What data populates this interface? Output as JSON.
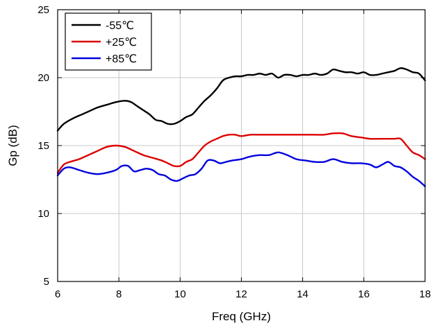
{
  "chart_data": {
    "type": "line",
    "title": "",
    "xlabel": "Freq (GHz)",
    "ylabel": "Gp (dB)",
    "xlim": [
      6,
      18
    ],
    "ylim": [
      5,
      25
    ],
    "xticks": [
      6,
      8,
      10,
      12,
      14,
      16,
      18
    ],
    "yticks": [
      5,
      10,
      15,
      20,
      25
    ],
    "grid": true,
    "legend_position": "top-left",
    "series": [
      {
        "name": "-55℃",
        "color": "#000000",
        "x": [
          6.0,
          6.2,
          6.5,
          6.8,
          7.0,
          7.3,
          7.6,
          7.9,
          8.2,
          8.4,
          8.6,
          8.8,
          9.0,
          9.2,
          9.4,
          9.6,
          9.8,
          10.0,
          10.2,
          10.4,
          10.6,
          10.8,
          11.0,
          11.2,
          11.4,
          11.6,
          11.8,
          12.0,
          12.2,
          12.4,
          12.6,
          12.8,
          13.0,
          13.2,
          13.4,
          13.6,
          13.8,
          14.0,
          14.2,
          14.4,
          14.6,
          14.8,
          15.0,
          15.2,
          15.4,
          15.6,
          15.8,
          16.0,
          16.2,
          16.4,
          16.6,
          16.8,
          17.0,
          17.2,
          17.4,
          17.6,
          17.8,
          18.0
        ],
        "y": [
          16.1,
          16.6,
          17.0,
          17.3,
          17.5,
          17.8,
          18.0,
          18.2,
          18.3,
          18.2,
          17.9,
          17.6,
          17.3,
          16.9,
          16.8,
          16.6,
          16.6,
          16.8,
          17.1,
          17.3,
          17.8,
          18.3,
          18.7,
          19.2,
          19.8,
          20.0,
          20.1,
          20.1,
          20.2,
          20.2,
          20.3,
          20.2,
          20.3,
          20.0,
          20.2,
          20.2,
          20.1,
          20.2,
          20.2,
          20.3,
          20.2,
          20.3,
          20.6,
          20.5,
          20.4,
          20.4,
          20.3,
          20.4,
          20.2,
          20.2,
          20.3,
          20.4,
          20.5,
          20.7,
          20.6,
          20.4,
          20.3,
          19.8
        ]
      },
      {
        "name": "+25℃",
        "color": "#dd0000",
        "x": [
          6.0,
          6.2,
          6.4,
          6.7,
          7.0,
          7.3,
          7.6,
          7.9,
          8.2,
          8.5,
          8.8,
          9.1,
          9.4,
          9.6,
          9.8,
          10.0,
          10.2,
          10.4,
          10.6,
          10.8,
          11.0,
          11.2,
          11.4,
          11.6,
          11.8,
          12.0,
          12.3,
          12.6,
          12.9,
          13.2,
          13.5,
          13.8,
          14.1,
          14.4,
          14.7,
          15.0,
          15.3,
          15.6,
          15.9,
          16.2,
          16.5,
          16.8,
          17.0,
          17.2,
          17.4,
          17.6,
          17.8,
          18.0
        ],
        "y": [
          13.0,
          13.6,
          13.8,
          14.0,
          14.3,
          14.6,
          14.9,
          15.0,
          14.9,
          14.6,
          14.3,
          14.1,
          13.9,
          13.7,
          13.5,
          13.5,
          13.8,
          14.0,
          14.5,
          15.0,
          15.3,
          15.5,
          15.7,
          15.8,
          15.8,
          15.7,
          15.8,
          15.8,
          15.8,
          15.8,
          15.8,
          15.8,
          15.8,
          15.8,
          15.8,
          15.9,
          15.9,
          15.7,
          15.6,
          15.5,
          15.5,
          15.5,
          15.5,
          15.5,
          15.0,
          14.5,
          14.3,
          14.0
        ]
      },
      {
        "name": "+85℃",
        "color": "#0000dd",
        "x": [
          6.0,
          6.2,
          6.4,
          6.7,
          7.0,
          7.3,
          7.6,
          7.9,
          8.1,
          8.3,
          8.5,
          8.7,
          8.9,
          9.1,
          9.3,
          9.5,
          9.7,
          9.9,
          10.1,
          10.3,
          10.5,
          10.7,
          10.9,
          11.1,
          11.3,
          11.5,
          11.7,
          12.0,
          12.3,
          12.6,
          12.9,
          13.2,
          13.5,
          13.8,
          14.1,
          14.4,
          14.7,
          15.0,
          15.3,
          15.6,
          15.9,
          16.2,
          16.4,
          16.6,
          16.8,
          17.0,
          17.2,
          17.4,
          17.6,
          17.8,
          18.0
        ],
        "y": [
          12.8,
          13.3,
          13.4,
          13.2,
          13.0,
          12.9,
          13.0,
          13.2,
          13.5,
          13.5,
          13.1,
          13.2,
          13.3,
          13.2,
          12.9,
          12.8,
          12.5,
          12.4,
          12.6,
          12.8,
          12.9,
          13.3,
          13.9,
          13.9,
          13.7,
          13.8,
          13.9,
          14.0,
          14.2,
          14.3,
          14.3,
          14.5,
          14.3,
          14.0,
          13.9,
          13.8,
          13.8,
          14.0,
          13.8,
          13.7,
          13.7,
          13.6,
          13.4,
          13.6,
          13.8,
          13.5,
          13.4,
          13.1,
          12.7,
          12.4,
          12.0
        ]
      }
    ]
  }
}
